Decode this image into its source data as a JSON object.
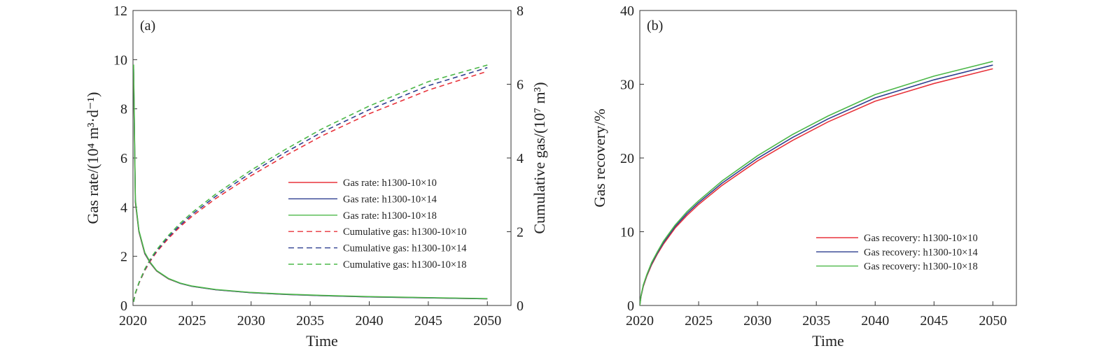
{
  "chart_data": [
    {
      "type": "line",
      "panel_label": "(a)",
      "xlabel": "Time",
      "ylabel": "Gas rate/(10⁴ m³·d⁻¹)",
      "y2label": "Cumulative gas/(10⁷ m³)",
      "xlim": [
        2020,
        2052
      ],
      "ylim": [
        0,
        12
      ],
      "y2lim": [
        0,
        8
      ],
      "xticks": [
        "2020",
        "2025",
        "2030",
        "2035",
        "2040",
        "2045",
        "2050"
      ],
      "yticks": [
        "0",
        "2",
        "4",
        "6",
        "8",
        "10",
        "12"
      ],
      "y2ticks": [
        "0",
        "2",
        "4",
        "6",
        "8"
      ],
      "grid": false,
      "legend_position": "center-right",
      "x": [
        2020.05,
        2020.2,
        2020.5,
        2021,
        2021.5,
        2022,
        2023,
        2024,
        2025,
        2027,
        2030,
        2033,
        2036,
        2040,
        2045,
        2050
      ],
      "series": [
        {
          "name": "Gas rate: h1300-10×10",
          "axis": "left",
          "style": "solid",
          "color": "#e8333b",
          "values": [
            9.5,
            4.2,
            3.0,
            2.1,
            1.7,
            1.4,
            1.08,
            0.9,
            0.78,
            0.64,
            0.52,
            0.45,
            0.4,
            0.35,
            0.31,
            0.27
          ]
        },
        {
          "name": "Gas rate: h1300-10×14",
          "axis": "left",
          "style": "solid",
          "color": "#2e3f8f",
          "values": [
            9.6,
            4.25,
            3.02,
            2.12,
            1.71,
            1.41,
            1.09,
            0.9,
            0.78,
            0.64,
            0.52,
            0.45,
            0.4,
            0.35,
            0.31,
            0.27
          ]
        },
        {
          "name": "Gas rate: h1300-10×18",
          "axis": "left",
          "style": "solid",
          "color": "#4cb848",
          "values": [
            9.8,
            4.3,
            3.05,
            2.15,
            1.73,
            1.42,
            1.1,
            0.91,
            0.79,
            0.65,
            0.53,
            0.46,
            0.41,
            0.36,
            0.32,
            0.28
          ]
        },
        {
          "name": "Cumulative gas: h1300-10×10",
          "axis": "right",
          "style": "dashed",
          "color": "#e8333b",
          "values": [
            0.1,
            0.32,
            0.6,
            0.95,
            1.22,
            1.45,
            1.82,
            2.14,
            2.42,
            2.9,
            3.52,
            4.08,
            4.6,
            5.2,
            5.84,
            6.35
          ]
        },
        {
          "name": "Cumulative gas: h1300-10×14",
          "axis": "right",
          "style": "dashed",
          "color": "#2e3f8f",
          "values": [
            0.1,
            0.33,
            0.61,
            0.97,
            1.25,
            1.48,
            1.86,
            2.18,
            2.47,
            2.96,
            3.6,
            4.17,
            4.7,
            5.31,
            5.96,
            6.45
          ]
        },
        {
          "name": "Cumulative gas: h1300-10×18",
          "axis": "right",
          "style": "dashed",
          "color": "#4cb848",
          "values": [
            0.1,
            0.34,
            0.62,
            0.99,
            1.28,
            1.51,
            1.9,
            2.23,
            2.52,
            3.02,
            3.67,
            4.25,
            4.79,
            5.41,
            6.07,
            6.52
          ]
        }
      ]
    },
    {
      "type": "line",
      "panel_label": "(b)",
      "xlabel": "Time",
      "ylabel": "Gas recovery/%",
      "xlim": [
        2020,
        2052
      ],
      "ylim": [
        0,
        40
      ],
      "xticks": [
        "2020",
        "2025",
        "2030",
        "2035",
        "2040",
        "2045",
        "2050"
      ],
      "yticks": [
        "0",
        "10",
        "20",
        "30",
        "40"
      ],
      "grid": false,
      "legend_position": "lower-right",
      "x": [
        2020,
        2020.1,
        2020.3,
        2020.6,
        2021,
        2021.5,
        2022,
        2023,
        2024,
        2025,
        2027,
        2030,
        2033,
        2036,
        2040,
        2045,
        2050
      ],
      "series": [
        {
          "name": "Gas recovery: h1300-10×10",
          "style": "solid",
          "color": "#e8333b",
          "values": [
            0,
            1.2,
            2.6,
            4.0,
            5.5,
            7.0,
            8.3,
            10.5,
            12.2,
            13.7,
            16.3,
            19.6,
            22.4,
            24.9,
            27.7,
            30.1,
            32.1
          ]
        },
        {
          "name": "Gas recovery: h1300-10×14",
          "style": "solid",
          "color": "#2e3f8f",
          "values": [
            0,
            1.25,
            2.7,
            4.1,
            5.65,
            7.15,
            8.5,
            10.7,
            12.45,
            13.95,
            16.6,
            19.95,
            22.8,
            25.3,
            28.15,
            30.6,
            32.6
          ]
        },
        {
          "name": "Gas recovery: h1300-10×18",
          "style": "solid",
          "color": "#4cb848",
          "values": [
            0,
            1.3,
            2.8,
            4.2,
            5.8,
            7.3,
            8.7,
            10.9,
            12.7,
            14.2,
            16.9,
            20.3,
            23.2,
            25.7,
            28.6,
            31.1,
            33.1
          ]
        }
      ]
    }
  ]
}
